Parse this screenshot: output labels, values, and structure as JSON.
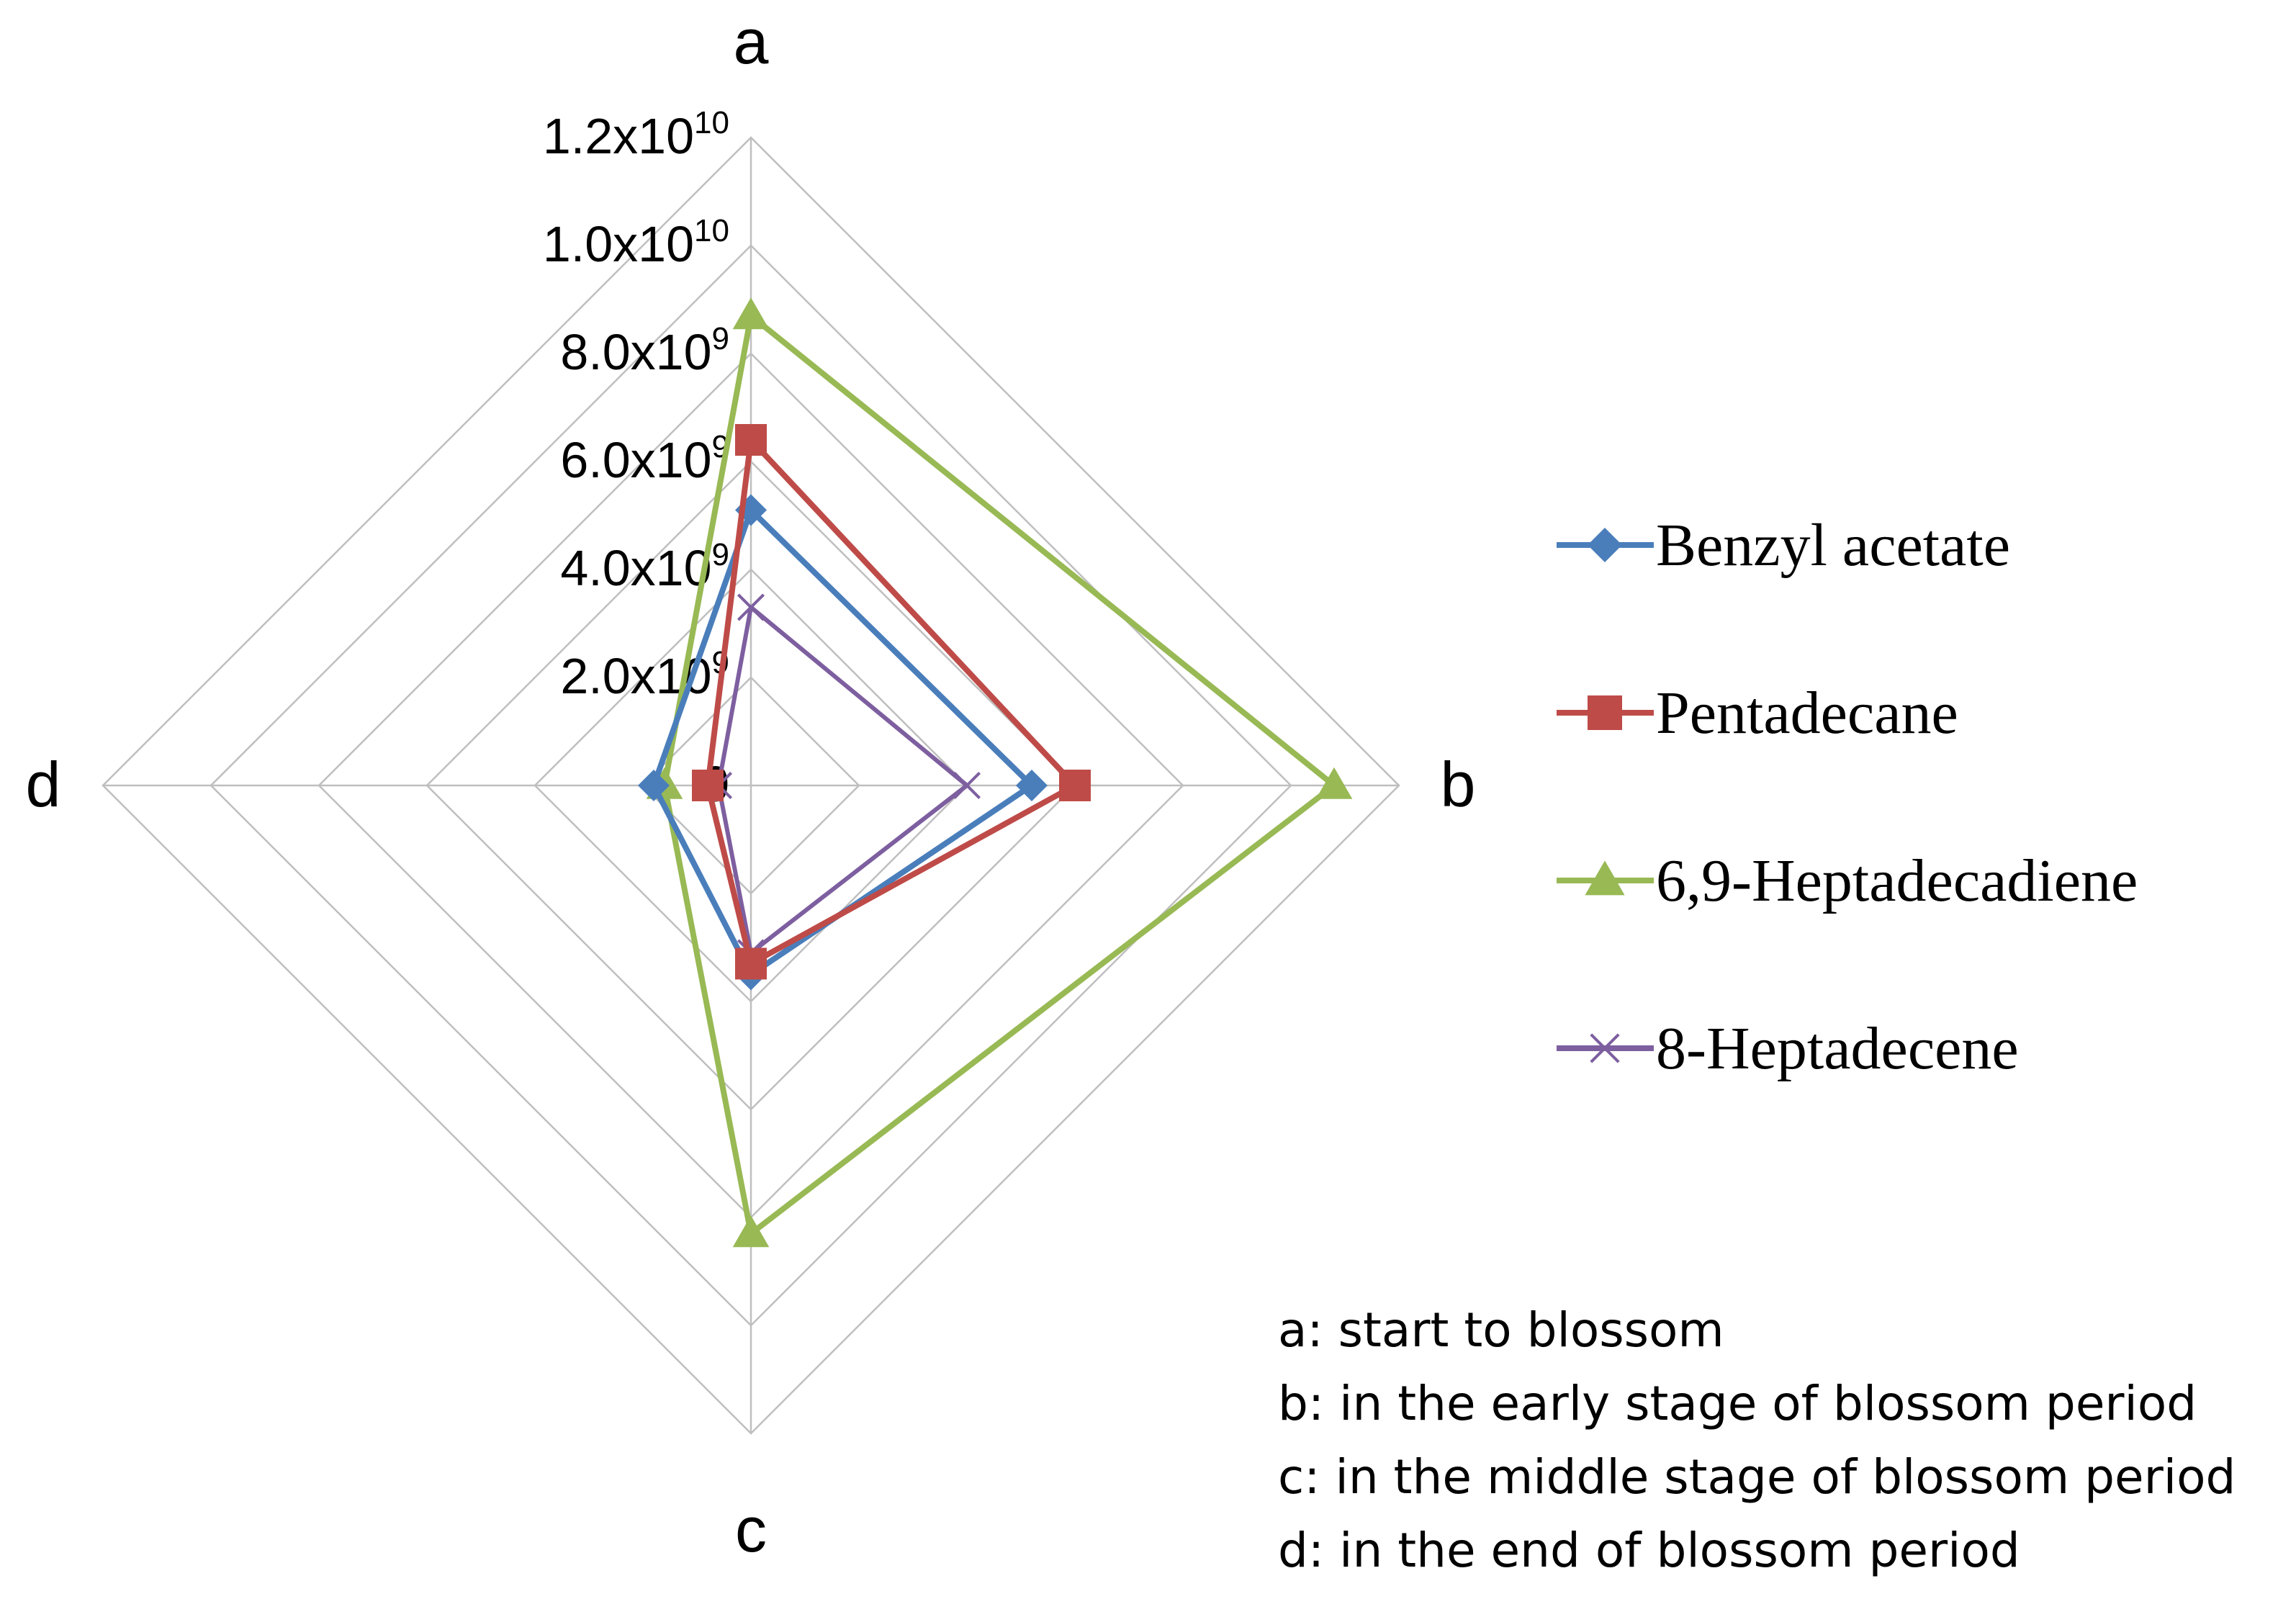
{
  "chart_data": {
    "type": "radar",
    "categories": [
      "a",
      "b",
      "c",
      "d"
    ],
    "rlim": [
      0,
      12000000000
    ],
    "tick_values": [
      0,
      2000000000,
      4000000000,
      6000000000,
      8000000000,
      10000000000,
      12000000000
    ],
    "tick_labels": [
      {
        "base": "0",
        "exp": ""
      },
      {
        "base": "2.0x10",
        "exp": "9"
      },
      {
        "base": "4.0x10",
        "exp": "9"
      },
      {
        "base": "6.0x10",
        "exp": "9"
      },
      {
        "base": "8.0x10",
        "exp": "9"
      },
      {
        "base": "1.0x10",
        "exp": "10"
      },
      {
        "base": "1.2x10",
        "exp": "10"
      }
    ],
    "grid": true,
    "legend_position": "right",
    "series": [
      {
        "name": "Benzyl acetate",
        "values": [
          5100000000,
          5200000000,
          3500000000,
          1800000000
        ],
        "color": "#4a7ebb",
        "marker": "diamond"
      },
      {
        "name": "Pentadecane",
        "values": [
          6400000000,
          6000000000,
          3300000000,
          800000000
        ],
        "color": "#be4b48",
        "marker": "square"
      },
      {
        "name": "6,9-Heptadecadiene",
        "values": [
          8700000000,
          10800000000,
          8300000000,
          1600000000
        ],
        "color": "#98b954",
        "marker": "triangle"
      },
      {
        "name": "8-Heptadecene",
        "values": [
          3300000000,
          4000000000,
          3100000000,
          600000000
        ],
        "color": "#7d5fa0",
        "marker": "x"
      }
    ],
    "notes": [
      "a: start to blossom",
      "b: in the early stage of blossom period",
      "c: in the middle stage of blossom period",
      "d: in the end of blossom period"
    ]
  }
}
